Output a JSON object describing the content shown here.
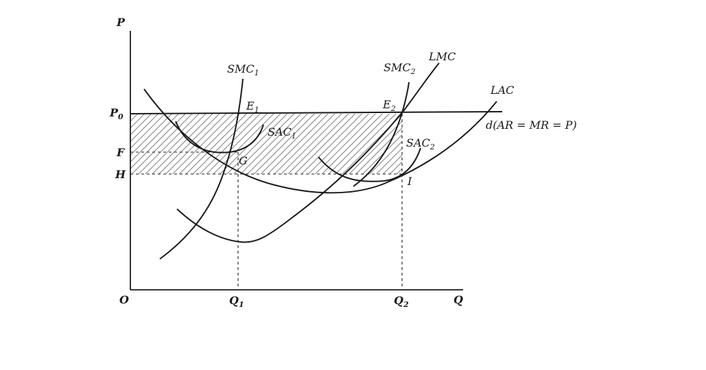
{
  "axes": {
    "y_label": "P",
    "x_label": "Q",
    "origin_label": "O",
    "y_ticks": {
      "p0": "P",
      "p0_sub": "0",
      "f": "F",
      "h": "H"
    },
    "x_ticks": {
      "q1": "Q",
      "q1_sub": "1",
      "q2": "Q",
      "q2_sub": "2"
    }
  },
  "curves": {
    "smc1": {
      "label": "SMC",
      "sub": "1"
    },
    "smc2": {
      "label": "SMC",
      "sub": "2"
    },
    "lmc": {
      "label": "LMC"
    },
    "lac": {
      "label": "LAC"
    },
    "sac1": {
      "label": "SAC",
      "sub": "1"
    },
    "sac2": {
      "label": "SAC",
      "sub": "2"
    },
    "demand": {
      "label": "d(AR = MR = P)"
    }
  },
  "points": {
    "e1": {
      "label": "E",
      "sub": "1"
    },
    "e2": {
      "label": "E",
      "sub": "2"
    },
    "g": {
      "label": "G"
    },
    "i": {
      "label": "I"
    }
  }
}
